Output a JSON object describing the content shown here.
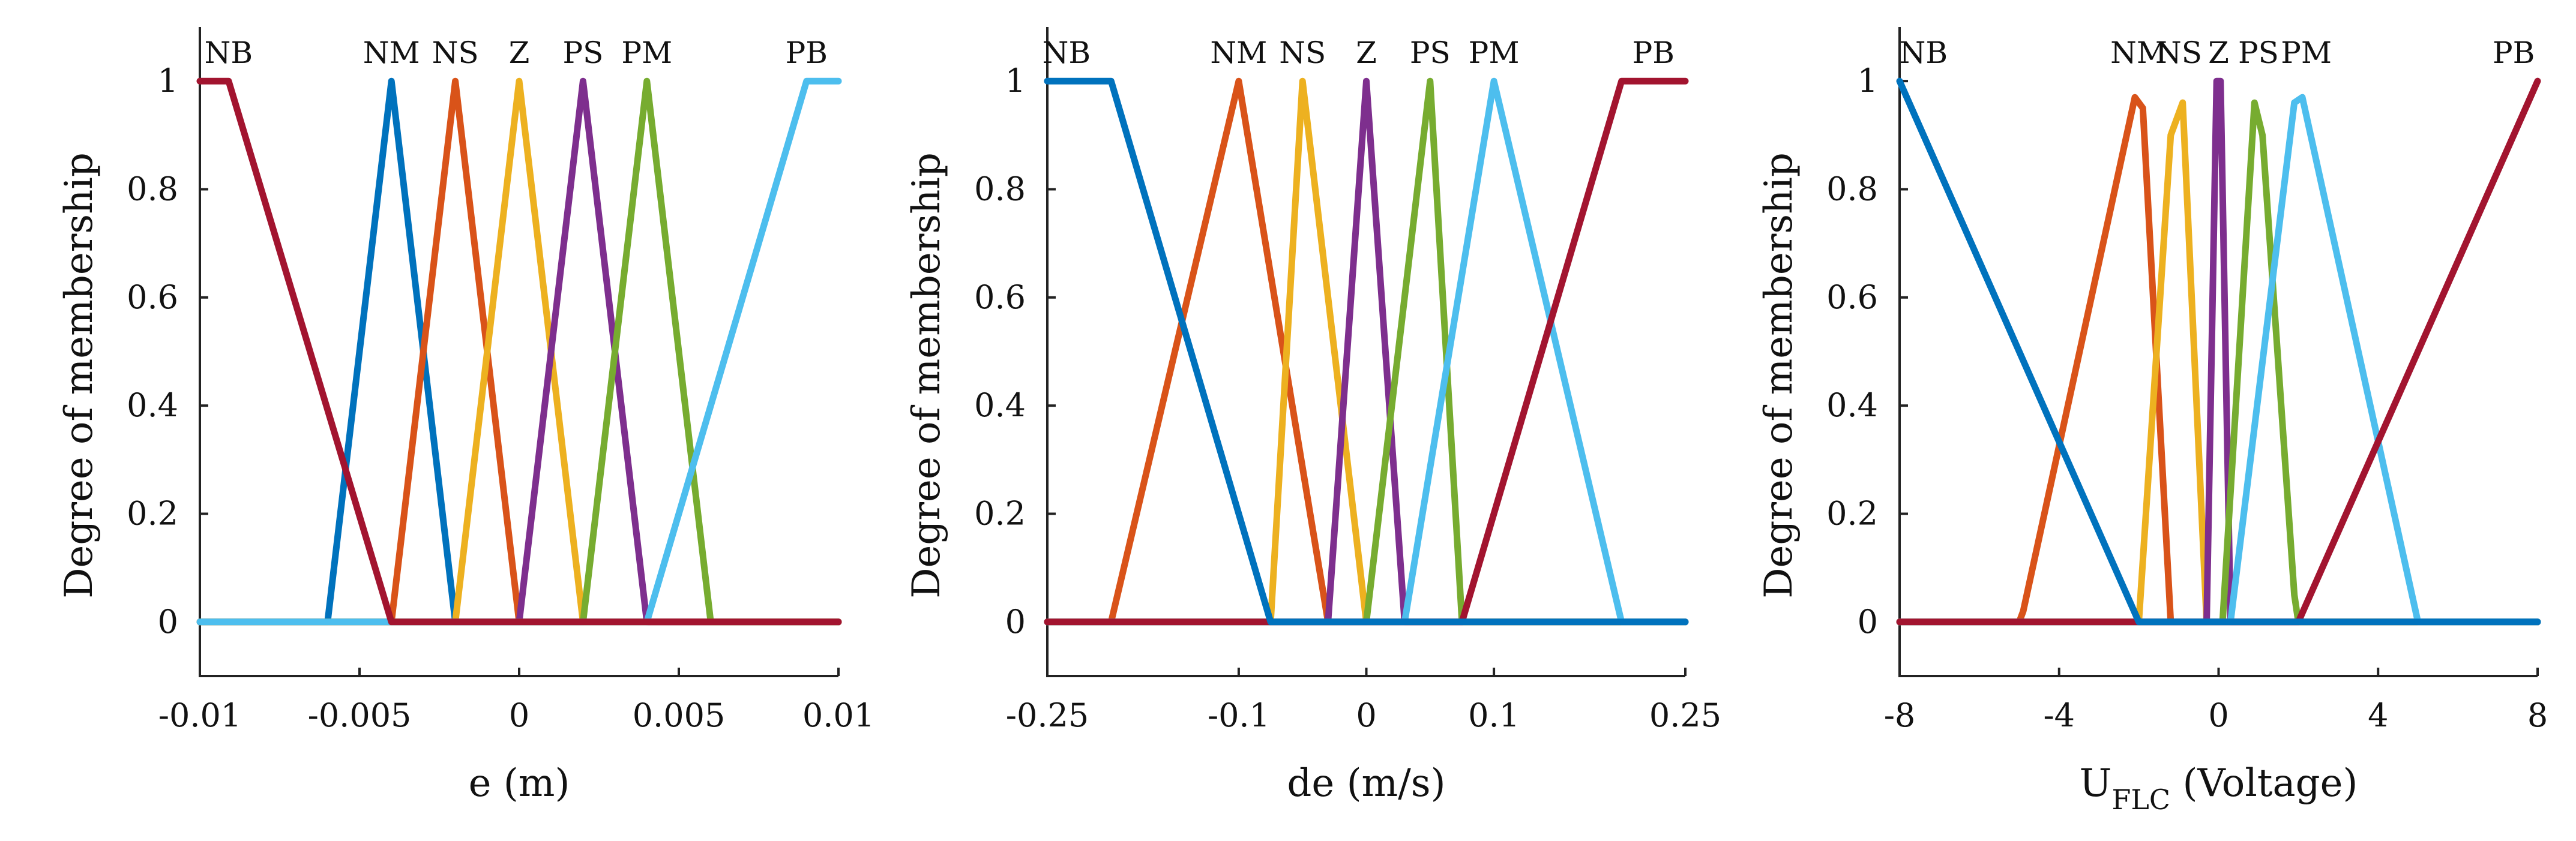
{
  "chart_data": [
    {
      "type": "line",
      "title": "",
      "xlabel": "e (m)",
      "ylabel": "Degree of membership",
      "xlim": [
        -0.01,
        0.01
      ],
      "ylim": [
        -0.1,
        1.1
      ],
      "xticks": [
        -0.01,
        -0.005,
        0,
        0.005,
        0.01
      ],
      "xtick_labels": [
        "-0.01",
        "-0.005",
        "0",
        "0.005",
        "0.01"
      ],
      "yticks": [
        0,
        0.2,
        0.4,
        0.6,
        0.8,
        1
      ],
      "ytick_labels": [
        "0",
        "0.2",
        "0.4",
        "0.6",
        "0.8",
        "1"
      ],
      "labels": [
        {
          "text": "NB",
          "x": -0.0091
        },
        {
          "text": "NM",
          "x": -0.004
        },
        {
          "text": "NS",
          "x": -0.002
        },
        {
          "text": "Z",
          "x": 0.0
        },
        {
          "text": "PS",
          "x": 0.002
        },
        {
          "text": "PM",
          "x": 0.004
        },
        {
          "text": "PB",
          "x": 0.009
        }
      ],
      "series": [
        {
          "name": "NM",
          "color": "#0072BD",
          "x": [
            -0.01,
            -0.006,
            -0.004,
            -0.002,
            0.01
          ],
          "y": [
            0,
            0,
            1,
            0,
            0
          ]
        },
        {
          "name": "NS",
          "color": "#D95319",
          "x": [
            -0.01,
            -0.004,
            -0.002,
            0,
            0.01
          ],
          "y": [
            0,
            0,
            1,
            0,
            0
          ]
        },
        {
          "name": "Z",
          "color": "#EDB120",
          "x": [
            -0.01,
            -0.002,
            0,
            0.002,
            0.01
          ],
          "y": [
            0,
            0,
            1,
            0,
            0
          ]
        },
        {
          "name": "PS",
          "color": "#7E2F8E",
          "x": [
            -0.01,
            0,
            0.002,
            0.004,
            0.01
          ],
          "y": [
            0,
            0,
            1,
            0,
            0
          ]
        },
        {
          "name": "PM",
          "color": "#77AC30",
          "x": [
            -0.01,
            0.002,
            0.004,
            0.006,
            0.01
          ],
          "y": [
            0,
            0,
            1,
            0,
            0
          ]
        },
        {
          "name": "PB",
          "color": "#4DBEEE",
          "x": [
            -0.01,
            0.004,
            0.009,
            0.01
          ],
          "y": [
            0,
            0,
            1,
            1
          ]
        },
        {
          "name": "NB",
          "color": "#A2142F",
          "x": [
            -0.01,
            -0.0091,
            -0.004,
            0.01
          ],
          "y": [
            1,
            1,
            0,
            0
          ]
        }
      ]
    },
    {
      "type": "line",
      "title": "",
      "xlabel": "de (m/s)",
      "ylabel": "Degree of membership",
      "xlim": [
        -0.25,
        0.25
      ],
      "ylim": [
        -0.1,
        1.1
      ],
      "xticks": [
        -0.25,
        -0.1,
        0,
        0.1,
        0.25
      ],
      "xtick_labels": [
        "-0.25",
        "-0.1",
        "0",
        "0.1",
        "0.25"
      ],
      "yticks": [
        0,
        0.2,
        0.4,
        0.6,
        0.8,
        1
      ],
      "ytick_labels": [
        "0",
        "0.2",
        "0.4",
        "0.6",
        "0.8",
        "1"
      ],
      "labels": [
        {
          "text": "NB",
          "x": -0.235
        },
        {
          "text": "NM",
          "x": -0.1
        },
        {
          "text": "NS",
          "x": -0.05
        },
        {
          "text": "Z",
          "x": 0.0
        },
        {
          "text": "PS",
          "x": 0.05
        },
        {
          "text": "PM",
          "x": 0.1
        },
        {
          "text": "PB",
          "x": 0.225
        }
      ],
      "series": [
        {
          "name": "NB",
          "color": "#0072BD",
          "x": [
            -0.25,
            -0.2,
            -0.075,
            0.25
          ],
          "y": [
            1,
            1,
            0,
            0
          ]
        },
        {
          "name": "NM",
          "color": "#D95319",
          "x": [
            -0.25,
            -0.2,
            -0.1,
            -0.03,
            0.25
          ],
          "y": [
            0,
            0,
            1,
            0,
            0
          ]
        },
        {
          "name": "NS",
          "color": "#EDB120",
          "x": [
            -0.25,
            -0.075,
            -0.05,
            0,
            0.25
          ],
          "y": [
            0,
            0,
            1,
            0,
            0
          ]
        },
        {
          "name": "Z",
          "color": "#7E2F8E",
          "x": [
            -0.25,
            -0.03,
            0,
            0.03,
            0.25
          ],
          "y": [
            0,
            0,
            1,
            0,
            0
          ]
        },
        {
          "name": "PS",
          "color": "#77AC30",
          "x": [
            -0.25,
            0,
            0.05,
            0.075,
            0.25
          ],
          "y": [
            0,
            0,
            1,
            0,
            0
          ]
        },
        {
          "name": "PM",
          "color": "#4DBEEE",
          "x": [
            -0.25,
            0.03,
            0.1,
            0.2,
            0.25
          ],
          "y": [
            0,
            0,
            1,
            0,
            0
          ]
        },
        {
          "name": "PB",
          "color": "#A2142F",
          "x": [
            -0.25,
            0.075,
            0.2,
            0.25
          ],
          "y": [
            0,
            0,
            1,
            1
          ]
        }
      ]
    },
    {
      "type": "line",
      "title": "",
      "xlabel": "U",
      "xlabel_sub": "FLC",
      "xlabel_suffix": " (Voltage)",
      "ylabel": "Degree of membership",
      "xlim": [
        -8,
        8
      ],
      "ylim": [
        -0.1,
        1.1
      ],
      "xticks": [
        -8,
        -4,
        0,
        4,
        8
      ],
      "xtick_labels": [
        "-8",
        "-4",
        "0",
        "4",
        "8"
      ],
      "yticks": [
        0,
        0.2,
        0.4,
        0.6,
        0.8,
        1
      ],
      "ytick_labels": [
        "0",
        "0.2",
        "0.4",
        "0.6",
        "0.8",
        "1"
      ],
      "labels": [
        {
          "text": "NB",
          "x": -7.4
        },
        {
          "text": "NM",
          "x": -2.0
        },
        {
          "text": "NS",
          "x": -1.0
        },
        {
          "text": "Z",
          "x": 0.0
        },
        {
          "text": "PS",
          "x": 1.0
        },
        {
          "text": "PM",
          "x": 2.2
        },
        {
          "text": "PB",
          "x": 7.4
        }
      ],
      "series": [
        {
          "name": "NB",
          "color": "#0072BD",
          "x": [
            -8,
            -2,
            8
          ],
          "y": [
            1,
            0,
            0
          ]
        },
        {
          "name": "NM",
          "color": "#D95319",
          "x": [
            -8,
            -5,
            -4.9,
            -2.1,
            -1.9,
            -1.2,
            8
          ],
          "y": [
            0,
            0,
            0.02,
            0.97,
            0.95,
            0,
            0
          ]
        },
        {
          "name": "NS",
          "color": "#EDB120",
          "x": [
            -8,
            -2,
            -1.2,
            -0.9,
            -0.3,
            8
          ],
          "y": [
            0,
            0,
            0.9,
            0.96,
            0,
            0
          ]
        },
        {
          "name": "Z",
          "color": "#7E2F8E",
          "x": [
            -8,
            -0.3,
            -0.05,
            0.05,
            0.3,
            8
          ],
          "y": [
            0,
            0,
            1,
            1,
            0,
            0
          ]
        },
        {
          "name": "PS",
          "color": "#77AC30",
          "x": [
            -8,
            0.1,
            0.9,
            1.1,
            1.9,
            2.0,
            8
          ],
          "y": [
            0,
            0,
            0.96,
            0.9,
            0.05,
            0,
            0
          ]
        },
        {
          "name": "PM",
          "color": "#4DBEEE",
          "x": [
            -8,
            0.3,
            1.9,
            2.1,
            5,
            8
          ],
          "y": [
            0,
            0,
            0.96,
            0.97,
            0,
            0
          ]
        },
        {
          "name": "PB",
          "color": "#A2142F",
          "x": [
            -8,
            2,
            8
          ],
          "y": [
            0,
            0,
            1
          ]
        }
      ]
    }
  ]
}
